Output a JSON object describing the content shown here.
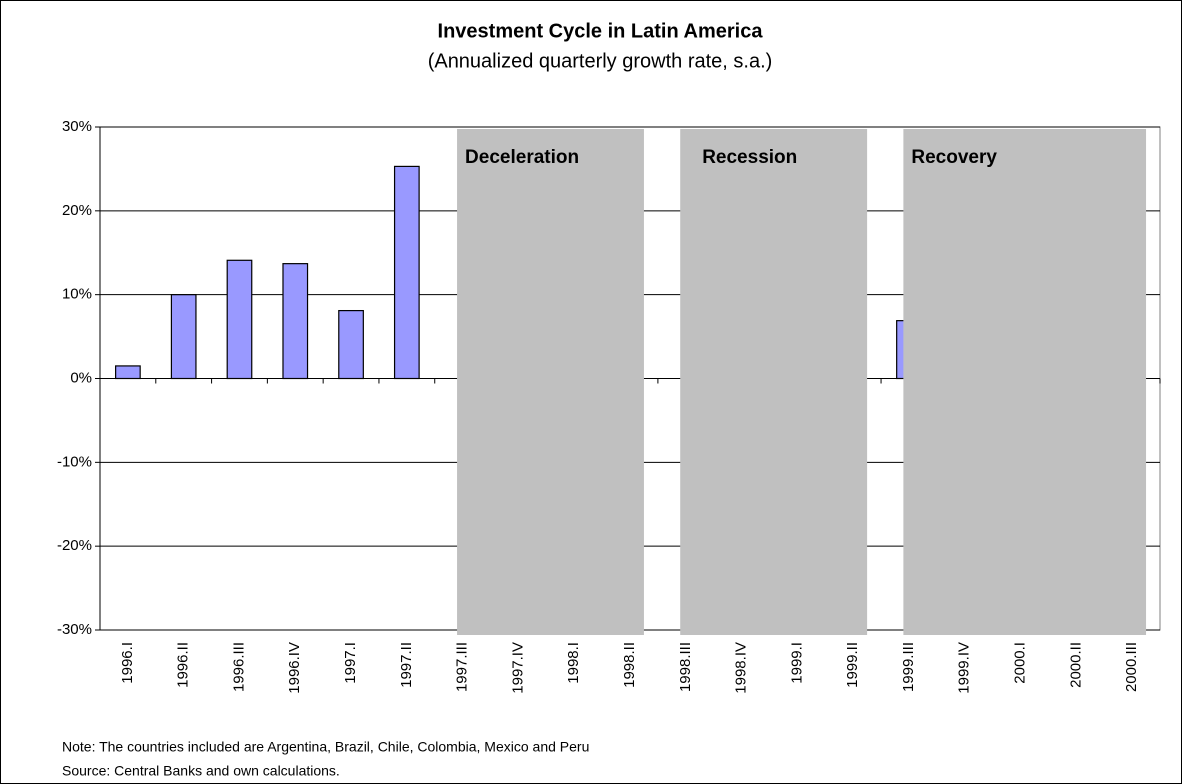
{
  "chart_data": {
    "type": "bar",
    "title": "Investment Cycle in Latin America",
    "subtitle": "(Annualized quarterly growth rate, s.a.)",
    "categories": [
      "1996.I",
      "1996.II",
      "1996.III",
      "1996.IV",
      "1997.I",
      "1997.II",
      "1997.III",
      "1997.IV",
      "1998.I",
      "1998.II",
      "1998.III",
      "1998.IV",
      "1999.I",
      "1999.II",
      "1999.III",
      "1999.IV",
      "2000.I",
      "2000.II",
      "2000.III"
    ],
    "values": [
      1.5,
      10.0,
      14.1,
      13.7,
      8.1,
      25.3,
      null,
      null,
      null,
      null,
      null,
      null,
      null,
      null,
      6.9,
      null,
      null,
      null,
      null
    ],
    "color": "#9999ff",
    "ylim": [
      -30,
      30
    ],
    "yticks": [
      {
        "value": -30,
        "label": "-30%"
      },
      {
        "value": -20,
        "label": "-20%"
      },
      {
        "value": -10,
        "label": "-10%"
      },
      {
        "value": 0,
        "label": "0%"
      },
      {
        "value": 10,
        "label": "10%"
      },
      {
        "value": 20,
        "label": "20%"
      },
      {
        "value": 30,
        "label": "30%"
      }
    ],
    "grid": true,
    "phases": [
      {
        "label": "Deceleration",
        "from": "1997.III",
        "to": "1998.II"
      },
      {
        "label": "Recession",
        "from": "1998.III",
        "to": "1999.II"
      },
      {
        "label": "Recovery",
        "from": "1999.III",
        "to": "2000.III"
      }
    ],
    "notes": [
      "Note:  The countries included are Argentina, Brazil, Chile, Colombia, Mexico and Peru",
      "Source: Central Banks and own calculations."
    ]
  }
}
